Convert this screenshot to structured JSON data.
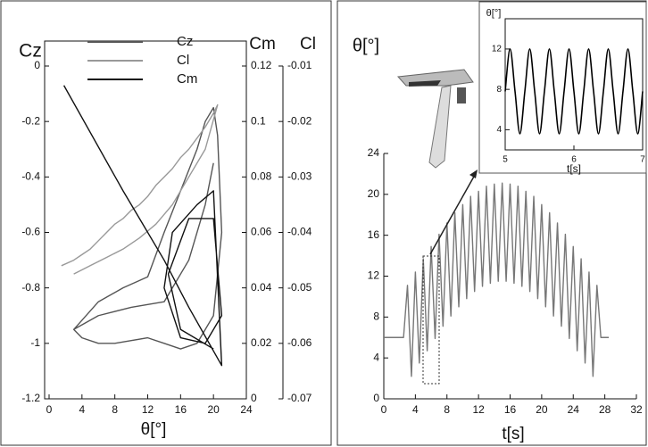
{
  "chart_data": [
    {
      "type": "line",
      "xlabel": "θ[°]",
      "ylabel": "Cz",
      "y2label": "Cm",
      "y3label": "Cl",
      "xlim": [
        0,
        24
      ],
      "xticks": [
        0,
        4,
        8,
        12,
        16,
        20,
        24
      ],
      "ylim": [
        -1.2,
        0
      ],
      "yticks": [
        -1.2,
        -1,
        -0.8,
        -0.6,
        -0.4,
        -0.2,
        0
      ],
      "y2lim": [
        0,
        0.12
      ],
      "y2ticks": [
        0,
        0.02,
        0.04,
        0.06,
        0.08,
        0.1,
        0.12
      ],
      "y3lim": [
        -0.07,
        -0.01
      ],
      "y3ticks": [
        -0.07,
        -0.06,
        -0.05,
        -0.04,
        -0.03,
        -0.02,
        -0.01
      ],
      "series": [
        {
          "name": "Cz",
          "color": "#555555",
          "axis": "y",
          "x": [
            3,
            6,
            9,
            12,
            14,
            16,
            18,
            19,
            20,
            20.5,
            21,
            20,
            18,
            16,
            14,
            12,
            10,
            8,
            6,
            4,
            3,
            6,
            10,
            14,
            17,
            19,
            20
          ],
          "values": [
            -0.95,
            -0.85,
            -0.8,
            -0.76,
            -0.6,
            -0.45,
            -0.3,
            -0.2,
            -0.15,
            -0.25,
            -0.6,
            -0.9,
            -1.0,
            -1.02,
            -1.0,
            -0.98,
            -0.99,
            -1.0,
            -1.0,
            -0.98,
            -0.95,
            -0.9,
            -0.87,
            -0.85,
            -0.7,
            -0.5,
            -0.35
          ]
        },
        {
          "name": "Cl",
          "color": "#999999",
          "axis": "y3",
          "x": [
            1.5,
            3,
            4,
            5,
            6,
            7,
            8,
            9,
            10,
            11,
            12,
            13,
            14,
            15,
            16,
            17,
            18,
            19,
            20,
            20.5,
            19,
            17,
            15,
            13,
            11,
            9,
            7,
            5,
            3
          ],
          "values": [
            -0.046,
            -0.045,
            -0.044,
            -0.043,
            -0.0415,
            -0.04,
            -0.0385,
            -0.0375,
            -0.036,
            -0.035,
            -0.0335,
            -0.0315,
            -0.03,
            -0.0285,
            -0.0265,
            -0.025,
            -0.023,
            -0.021,
            -0.0185,
            -0.017,
            -0.025,
            -0.03,
            -0.035,
            -0.0385,
            -0.041,
            -0.043,
            -0.0445,
            -0.046,
            -0.0475
          ]
        },
        {
          "name": "Cm",
          "color": "#111111",
          "axis": "y2",
          "x": [
            1.8,
            9,
            14,
            17,
            21,
            20,
            18,
            15,
            14,
            16,
            19,
            21,
            20,
            17,
            14.5,
            16,
            20
          ],
          "values": [
            0.113,
            0.075,
            0.05,
            0.033,
            0.012,
            0.075,
            0.07,
            0.06,
            0.04,
            0.022,
            0.02,
            0.03,
            0.065,
            0.065,
            0.045,
            0.025,
            0.018
          ]
        }
      ]
    },
    {
      "type": "line",
      "xlabel": "t[s]",
      "ylabel": "θ[°]",
      "xlim": [
        0,
        32
      ],
      "xticks": [
        0,
        4,
        8,
        12,
        16,
        20,
        24,
        28,
        32
      ],
      "ylim": [
        0,
        24
      ],
      "yticks": [
        0,
        4,
        8,
        12,
        16,
        20,
        24
      ],
      "series": [
        {
          "color": "#777777",
          "axis": "y",
          "x": [
            0,
            2.5,
            3,
            3.5,
            4,
            4.5,
            5,
            5.5,
            6,
            6.5,
            7,
            7.5,
            8,
            8.5,
            9,
            9.5,
            10,
            10.5,
            11,
            11.5,
            12,
            12.5,
            13,
            13.5,
            14,
            14.5,
            15,
            15.5,
            16,
            16.5,
            17,
            17.5,
            18,
            18.5,
            19,
            19.5,
            20,
            20.5,
            21,
            21.5,
            22,
            22.5,
            23,
            23.5,
            24,
            24.5,
            25,
            25.5,
            26,
            26.5,
            27,
            27.5,
            28.5
          ],
          "values": [
            6,
            6,
            11.1,
            2.2,
            12.4,
            3.5,
            13.7,
            4.7,
            14.9,
            5.9,
            16.1,
            7.1,
            17.2,
            8.1,
            18.2,
            9,
            19,
            9.8,
            19.8,
            10.5,
            20.3,
            11,
            20.8,
            11.3,
            21,
            11.5,
            21.1,
            11.5,
            21,
            11.3,
            20.8,
            11,
            20.3,
            10.5,
            19.8,
            9.8,
            19,
            9,
            18.2,
            8.1,
            17.2,
            7.1,
            16.1,
            5.9,
            14.9,
            4.7,
            13.7,
            3.5,
            12.4,
            2.2,
            11.1,
            6,
            6
          ]
        }
      ]
    },
    {
      "type": "line",
      "xlabel": "t[s]",
      "ylabel": "θ[°]",
      "xlim": [
        5,
        7
      ],
      "xticks": [
        5,
        6,
        7
      ],
      "ylim": [
        2,
        15
      ],
      "yticks": [
        4,
        8,
        12
      ],
      "series": [
        {
          "color": "#000000",
          "axis": "y",
          "x": [
            5,
            5.071,
            5.143,
            5.214,
            5.286,
            5.357,
            5.429,
            5.5,
            5.571,
            5.643,
            5.714,
            5.786,
            5.857,
            5.929,
            6,
            6.071,
            6.143,
            6.214,
            6.286,
            6.357,
            6.429,
            6.5,
            6.571,
            6.643,
            6.714,
            6.786,
            6.857,
            6.929,
            7
          ],
          "values": [
            7.8,
            12,
            7.8,
            3.6,
            7.8,
            12,
            7.8,
            3.6,
            7.8,
            12,
            7.8,
            3.6,
            7.8,
            12,
            7.8,
            3.6,
            7.8,
            12,
            7.8,
            3.6,
            7.8,
            12,
            7.8,
            3.6,
            7.8,
            12,
            7.8,
            3.6,
            7.8
          ]
        }
      ]
    }
  ]
}
